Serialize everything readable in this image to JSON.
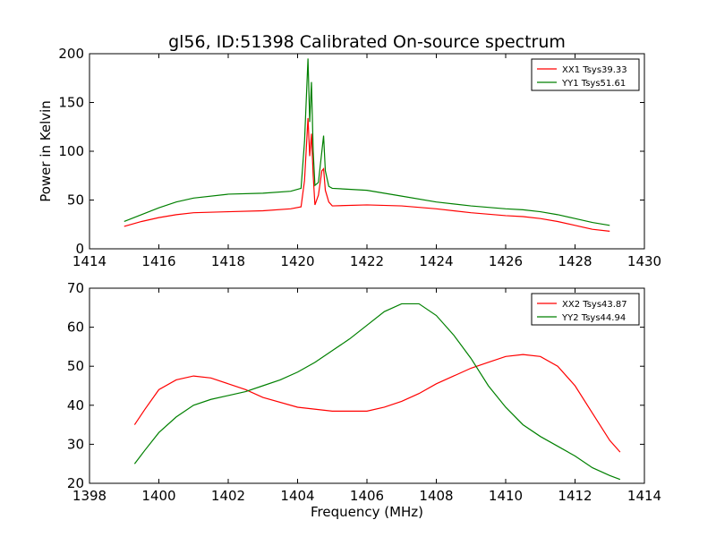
{
  "chart_data": {
    "title": "gl56, ID:51398 Calibrated On-source spectrum",
    "panels": [
      {
        "type": "line",
        "xlabel": "",
        "ylabel": "Power in Kelvin",
        "xlim": [
          1414,
          1430
        ],
        "ylim": [
          0,
          200
        ],
        "xticks": [
          1414,
          1416,
          1418,
          1420,
          1422,
          1424,
          1426,
          1428,
          1430
        ],
        "yticks": [
          0,
          50,
          100,
          150,
          200
        ],
        "legend_position": "top-right",
        "series": [
          {
            "name": "XX1 Tsys39.33",
            "color": "#ff0000",
            "x": [
              1415.0,
              1415.5,
              1416.0,
              1416.5,
              1417.0,
              1418.0,
              1419.0,
              1419.8,
              1420.1,
              1420.2,
              1420.3,
              1420.35,
              1420.4,
              1420.45,
              1420.5,
              1420.6,
              1420.7,
              1420.75,
              1420.8,
              1420.9,
              1421.0,
              1422.0,
              1423.0,
              1424.0,
              1425.0,
              1426.0,
              1426.5,
              1427.0,
              1427.5,
              1428.0,
              1428.5,
              1429.0
            ],
            "y": [
              23,
              28,
              32,
              35,
              37,
              38,
              39,
              41,
              43,
              70,
              134,
              95,
              118,
              75,
              45,
              55,
              80,
              82,
              60,
              48,
              44,
              45,
              44,
              41,
              37,
              34,
              33,
              31,
              28,
              24,
              20,
              18
            ]
          },
          {
            "name": "YY1 Tsys51.61",
            "color": "#008000",
            "x": [
              1415.0,
              1415.5,
              1416.0,
              1416.5,
              1417.0,
              1418.0,
              1419.0,
              1419.8,
              1420.1,
              1420.2,
              1420.3,
              1420.35,
              1420.4,
              1420.45,
              1420.5,
              1420.6,
              1420.7,
              1420.75,
              1420.8,
              1420.9,
              1421.0,
              1422.0,
              1423.0,
              1424.0,
              1425.0,
              1426.0,
              1426.5,
              1427.0,
              1427.5,
              1428.0,
              1428.5,
              1429.0
            ],
            "y": [
              28,
              35,
              42,
              48,
              52,
              56,
              57,
              59,
              62,
              110,
              195,
              130,
              171,
              100,
              65,
              68,
              100,
              116,
              80,
              64,
              62,
              60,
              54,
              48,
              44,
              41,
              40,
              38,
              35,
              31,
              27,
              24
            ]
          }
        ]
      },
      {
        "type": "line",
        "xlabel": "Frequency (MHz)",
        "ylabel": "",
        "xlim": [
          1398,
          1414
        ],
        "ylim": [
          20,
          70
        ],
        "xticks": [
          1398,
          1400,
          1402,
          1404,
          1406,
          1408,
          1410,
          1412,
          1414
        ],
        "yticks": [
          20,
          30,
          40,
          50,
          60,
          70
        ],
        "legend_position": "top-right",
        "series": [
          {
            "name": "XX2 Tsys43.87",
            "color": "#ff0000",
            "x": [
              1399.3,
              1399.6,
              1400.0,
              1400.5,
              1401.0,
              1401.5,
              1402.0,
              1402.5,
              1403.0,
              1404.0,
              1405.0,
              1406.0,
              1406.5,
              1407.0,
              1407.5,
              1408.0,
              1408.5,
              1409.0,
              1409.5,
              1410.0,
              1410.5,
              1411.0,
              1411.5,
              1412.0,
              1412.5,
              1413.0,
              1413.3
            ],
            "y": [
              35,
              39,
              44,
              46.5,
              47.5,
              47,
              45.5,
              44,
              42,
              39.5,
              38.5,
              38.5,
              39.5,
              41,
              43,
              45.5,
              47.5,
              49.5,
              51,
              52.5,
              53,
              52.5,
              50,
              45,
              38,
              31,
              28
            ]
          },
          {
            "name": "YY2 Tsys44.94",
            "color": "#008000",
            "x": [
              1399.3,
              1399.6,
              1400.0,
              1400.5,
              1401.0,
              1401.5,
              1402.0,
              1402.5,
              1403.0,
              1403.5,
              1404.0,
              1404.5,
              1405.0,
              1405.5,
              1406.0,
              1406.5,
              1407.0,
              1407.5,
              1408.0,
              1408.5,
              1409.0,
              1409.5,
              1410.0,
              1410.5,
              1411.0,
              1411.5,
              1412.0,
              1412.5,
              1413.0,
              1413.3
            ],
            "y": [
              25,
              28.5,
              33,
              37,
              40,
              41.5,
              42.5,
              43.5,
              45,
              46.5,
              48.5,
              51,
              54,
              57,
              60.5,
              64,
              66,
              66,
              63,
              58,
              52,
              45,
              39.5,
              35,
              32,
              29.5,
              27,
              24,
              22,
              21
            ]
          }
        ]
      }
    ]
  }
}
